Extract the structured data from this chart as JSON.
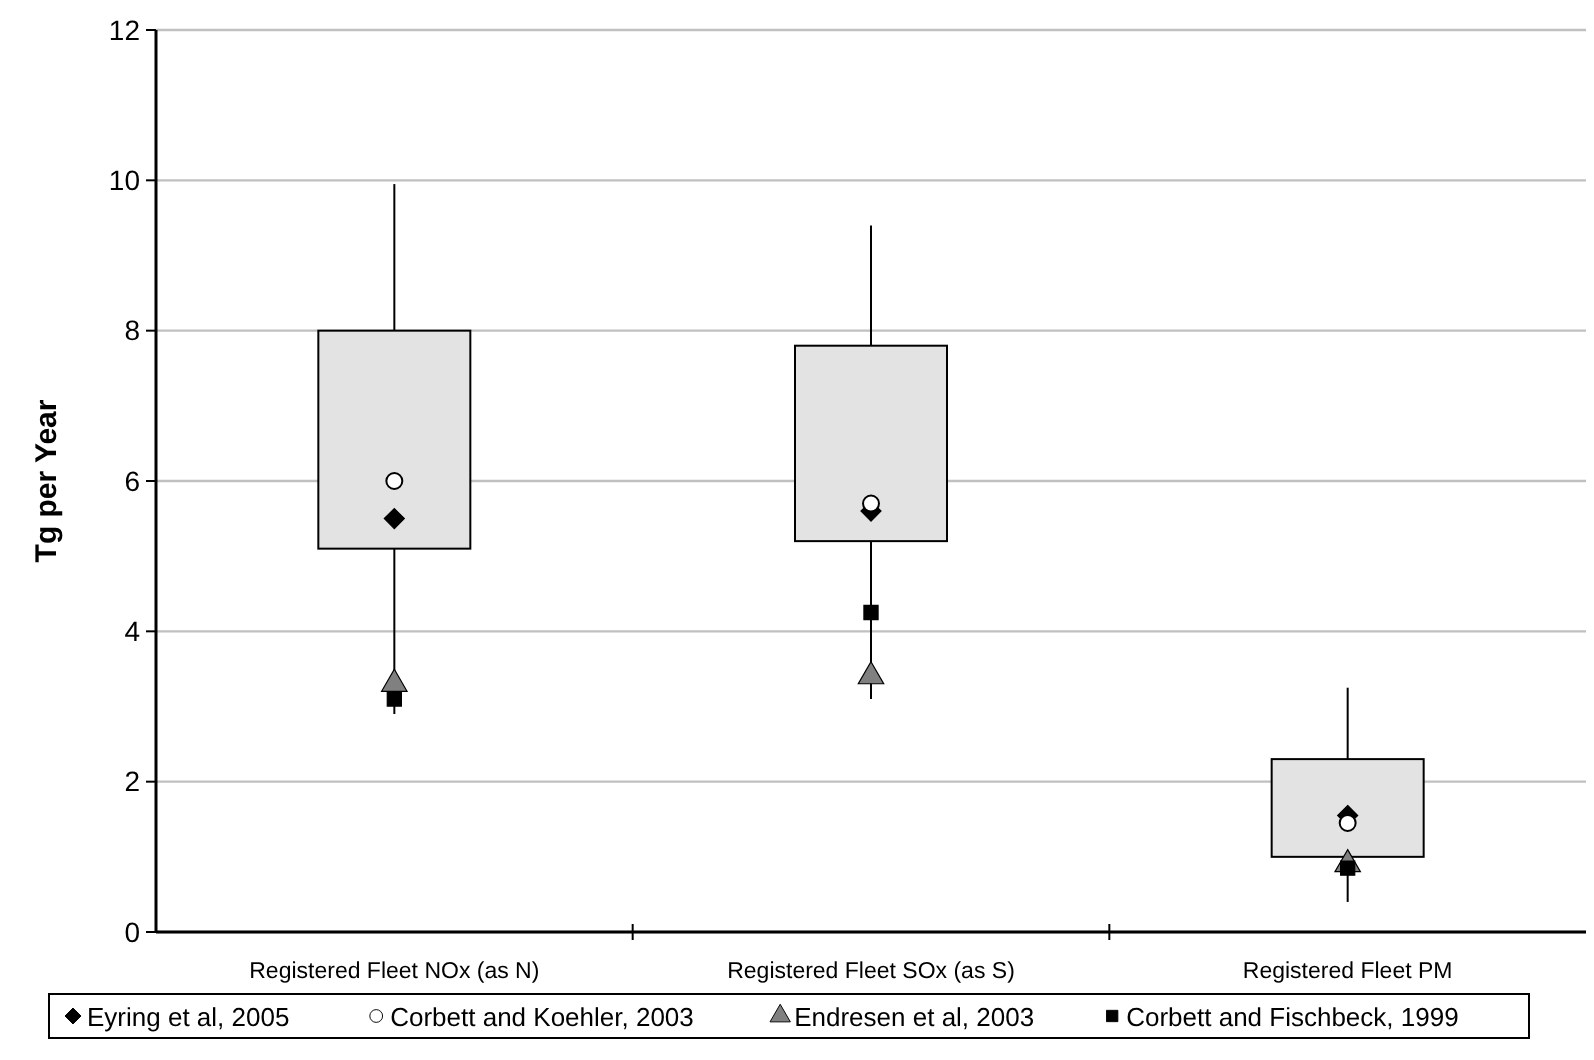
{
  "chart_data": {
    "type": "box",
    "ylabel": "Tg per Year",
    "categories": [
      "Registered Fleet NOx (as N)",
      "Registered Fleet SOx (as S)",
      "Registered Fleet PM"
    ],
    "boxes": [
      {
        "low": 2.9,
        "q1": 5.1,
        "q3": 8.0,
        "high": 9.95
      },
      {
        "low": 3.1,
        "q1": 5.2,
        "q3": 7.8,
        "high": 9.4
      },
      {
        "low": 0.4,
        "q1": 1.0,
        "q3": 2.3,
        "high": 3.25
      }
    ],
    "series": [
      {
        "type": "scatter",
        "name": "Eyring et al, 2005",
        "marker": "diamond",
        "color": "#000000",
        "x": [
          "Registered Fleet NOx (as N)",
          "Registered Fleet SOx (as S)",
          "Registered Fleet PM"
        ],
        "values": [
          5.5,
          5.6,
          1.55
        ]
      },
      {
        "type": "scatter",
        "name": "Corbett and Koehler, 2003",
        "marker": "circle",
        "color": "#ffffff",
        "x": [
          "Registered Fleet NOx (as N)",
          "Registered Fleet SOx (as S)",
          "Registered Fleet PM"
        ],
        "values": [
          6.0,
          5.7,
          1.45
        ]
      },
      {
        "type": "scatter",
        "name": "Endresen et al, 2003",
        "marker": "triangle",
        "color": "#808080",
        "x": [
          "Registered Fleet NOx (as N)",
          "Registered Fleet SOx (as S)",
          "Registered Fleet PM"
        ],
        "values": [
          3.3,
          3.4,
          0.9
        ]
      },
      {
        "type": "scatter",
        "name": "Corbett and Fischbeck, 1999",
        "marker": "square",
        "color": "#000000",
        "x": [
          "Registered Fleet NOx (as N)",
          "Registered Fleet SOx (as S)",
          "Registered Fleet PM"
        ],
        "values": [
          3.1,
          4.25,
          0.85
        ]
      }
    ],
    "ylim": [
      0,
      12
    ],
    "yticks": [
      0,
      2,
      4,
      6,
      8,
      10,
      12
    ],
    "grid": "y",
    "legend": "bottom"
  }
}
